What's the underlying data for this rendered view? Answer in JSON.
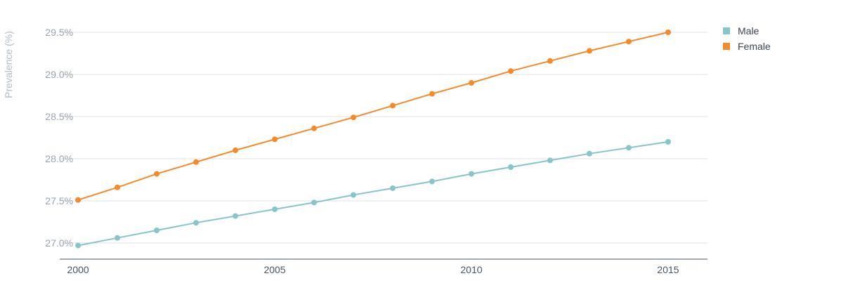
{
  "colors": {
    "male": "#88c5c8",
    "female": "#f58a2a"
  },
  "legend": {
    "items": [
      {
        "label": "Male",
        "color": "#88c5c8"
      },
      {
        "label": "Female",
        "color": "#f58a2a"
      }
    ]
  },
  "chart_data": {
    "type": "line",
    "title": "",
    "xlabel": "",
    "ylabel": "Prevalence (%)",
    "x": [
      2000,
      2001,
      2002,
      2003,
      2004,
      2005,
      2006,
      2007,
      2008,
      2009,
      2010,
      2011,
      2012,
      2013,
      2014,
      2015
    ],
    "xticks": [
      "2000",
      "2005",
      "2010",
      "2015"
    ],
    "yticks": [
      "27.0%",
      "27.5%",
      "28.0%",
      "28.5%",
      "29.0%",
      "29.5%"
    ],
    "ytick_values": [
      27.0,
      27.5,
      28.0,
      28.5,
      29.0,
      29.5
    ],
    "xlim": [
      2000,
      2016
    ],
    "ylim": [
      26.8,
      29.6
    ],
    "grid": true,
    "legend_position": "top-right",
    "series": [
      {
        "name": "Male",
        "color": "#88c5c8",
        "values": [
          26.97,
          27.06,
          27.15,
          27.24,
          27.32,
          27.4,
          27.48,
          27.57,
          27.65,
          27.73,
          27.82,
          27.9,
          27.98,
          28.06,
          28.13,
          28.2
        ]
      },
      {
        "name": "Female",
        "color": "#f58a2a",
        "values": [
          27.51,
          27.66,
          27.82,
          27.96,
          28.1,
          28.23,
          28.36,
          28.49,
          28.63,
          28.77,
          28.9,
          29.04,
          29.16,
          29.28,
          29.39,
          29.5
        ]
      }
    ]
  }
}
